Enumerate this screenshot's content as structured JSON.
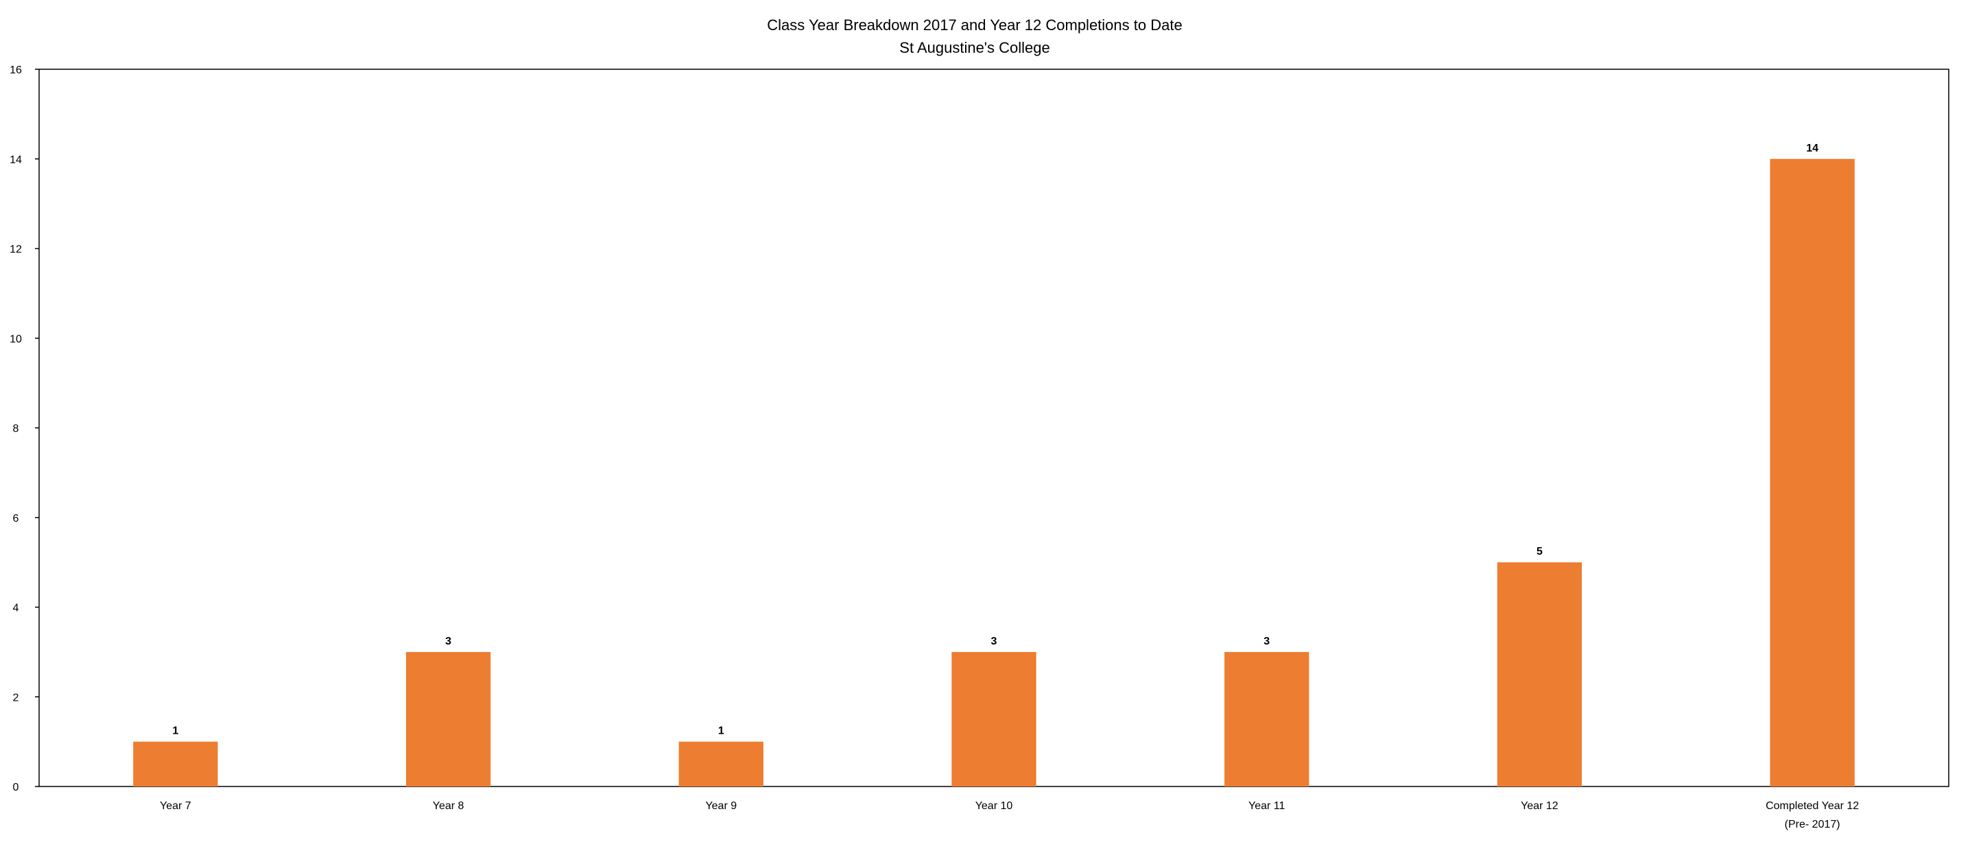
{
  "chart_data": {
    "type": "bar",
    "title": "Class Year Breakdown 2017 and Year 12 Completions to Date",
    "subtitle": "St Augustine's College",
    "categories": [
      "Year 7",
      "Year 8",
      "Year 9",
      "Year 10",
      "Year 11",
      "Year 12",
      "Completed Year 12 (Pre- 2017)"
    ],
    "category_lines": [
      [
        "Year 7"
      ],
      [
        "Year 8"
      ],
      [
        "Year 9"
      ],
      [
        "Year 10"
      ],
      [
        "Year 11"
      ],
      [
        "Year 12"
      ],
      [
        "Completed Year 12",
        "(Pre- 2017)"
      ]
    ],
    "values": [
      1,
      3,
      1,
      3,
      3,
      5,
      14
    ],
    "data_labels": [
      "1",
      "3",
      "1",
      "3",
      "3",
      "5",
      "14"
    ],
    "ylim": [
      0,
      16
    ],
    "yticks": [
      0,
      2,
      4,
      6,
      8,
      10,
      12,
      14,
      16
    ],
    "xlabel": "",
    "ylabel": "",
    "grid": false,
    "legend": "none",
    "bar_color": "#ED7D31"
  }
}
